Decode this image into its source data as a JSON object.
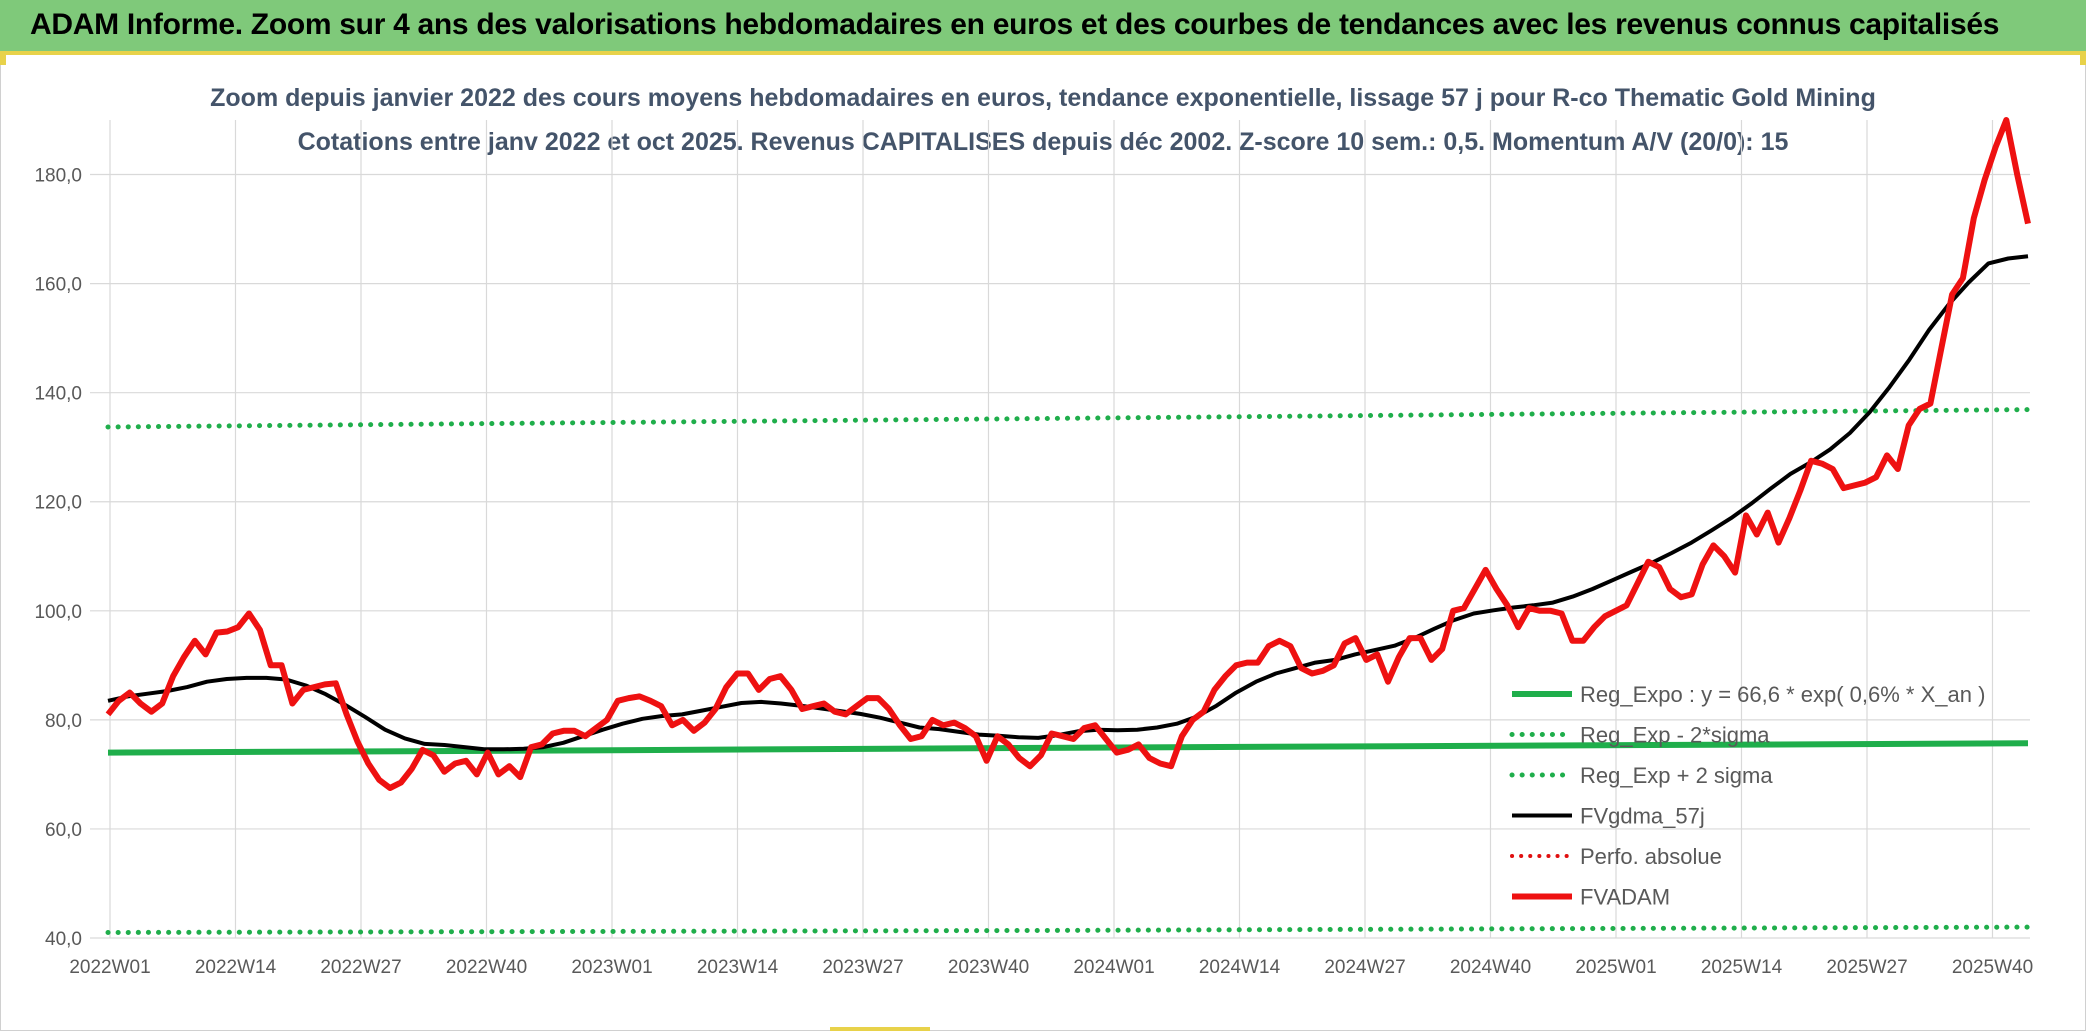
{
  "banner": {
    "title": "ADAM Informe. Zoom sur 4 ans des valorisations hebdomadaires en euros et des courbes de tendances avec les revenus connus capitalisés"
  },
  "chart_data": {
    "type": "line",
    "title": "Zoom depuis janvier 2022 des cours moyens hebdomadaires en euros, tendance exponentielle, lissage 57 j pour R-co Thematic Gold Mining",
    "subtitle": "Cotations entre janv 2022 et oct 2025. Revenus CAPITALISES depuis déc 2002. Z-score 10 sem.: 0,5. Momentum A/V (20/0): 15",
    "ylim": [
      40,
      190
    ],
    "yticks": [
      40,
      60,
      80,
      100,
      120,
      140,
      160,
      180
    ],
    "ytick_labels": [
      "40,0",
      "60,0",
      "80,0",
      "100,0",
      "120,0",
      "140,0",
      "160,0",
      "180,0"
    ],
    "xtick_labels": [
      "2022W01",
      "2022W14",
      "2022W27",
      "2022W40",
      "2023W01",
      "2023W14",
      "2023W27",
      "2023W40",
      "2024W01",
      "2024W14",
      "2024W27",
      "2024W40",
      "2025W01",
      "2025W14",
      "2025W27",
      "2025W40"
    ],
    "grid": true,
    "legend_position": "bottom-right",
    "colors": {
      "reg_expo": "#1fae4b",
      "reg_band": "#1fae4b",
      "fvgdma": "#000000",
      "perfo": "#e01010",
      "fvadam": "#ee1111"
    },
    "series": [
      {
        "name": "Reg_Expo : y = 66,6 * exp( 0,6% *  X_an )",
        "style": "solid-thick-green",
        "values": [
          74.0,
          74.4,
          74.9,
          75.3,
          75.7
        ]
      },
      {
        "name": "Reg_Exp - 2*sigma",
        "style": "dotted-green",
        "values": [
          41.0,
          41.2,
          41.4,
          41.7,
          42.0
        ]
      },
      {
        "name": "Reg_Exp + 2 sigma",
        "style": "dotted-green",
        "values": [
          133.7,
          134.5,
          135.3,
          136.1,
          136.9
        ]
      },
      {
        "name": "FVgdma_57j",
        "style": "solid-black",
        "values": [
          83.5,
          84.3,
          84.8,
          85.3,
          86.0,
          87.0,
          87.5,
          87.7,
          87.7,
          87.4,
          86.3,
          84.7,
          82.7,
          80.5,
          78.2,
          76.6,
          75.6,
          75.4,
          75.0,
          74.6,
          74.6,
          74.7,
          75.0,
          75.8,
          77.0,
          78.2,
          79.3,
          80.2,
          80.7,
          81.0,
          81.7,
          82.4,
          83.1,
          83.3,
          83.0,
          82.6,
          82.1,
          81.6,
          81.1,
          80.4,
          79.5,
          78.6,
          78.3,
          77.8,
          77.3,
          77.1,
          76.8,
          76.7,
          77.2,
          77.9,
          78.2,
          78.1,
          78.2,
          78.6,
          79.3,
          80.6,
          82.6,
          85.0,
          87.0,
          88.5,
          89.5,
          90.5,
          91.0,
          92.0,
          92.8,
          93.6,
          95.0,
          96.7,
          98.3,
          99.5,
          100.1,
          100.6,
          101.0,
          101.5,
          102.6,
          104.0,
          105.6,
          107.2,
          108.8,
          110.6,
          112.5,
          114.7,
          117.0,
          119.6,
          122.4,
          125.1,
          127.2,
          129.6,
          132.6,
          136.4,
          141.0,
          146.0,
          151.5,
          156.2,
          160.2,
          163.7,
          164.6,
          165.0
        ]
      },
      {
        "name": "Perfo. absolue",
        "style": "dotted-red",
        "values": []
      },
      {
        "name": "FVADAM",
        "style": "solid-thick-red",
        "values": [
          81.0,
          83.5,
          85.0,
          83.0,
          81.5,
          83.0,
          88.0,
          91.5,
          94.5,
          92.0,
          96.0,
          96.2,
          97.0,
          99.5,
          96.5,
          90.0,
          90.0,
          83.0,
          85.5,
          86.0,
          86.5,
          86.7,
          81.0,
          76.0,
          72.0,
          69.0,
          67.5,
          68.5,
          71.0,
          74.5,
          73.5,
          70.5,
          72.0,
          72.5,
          70.0,
          74.0,
          70.0,
          71.5,
          69.5,
          75.0,
          75.5,
          77.5,
          78.0,
          78.0,
          77.0,
          78.5,
          80.0,
          83.5,
          84.0,
          84.3,
          83.5,
          82.5,
          79.0,
          80.0,
          78.0,
          79.5,
          82.0,
          86.0,
          88.5,
          88.5,
          85.5,
          87.5,
          88.0,
          85.5,
          82.0,
          82.5,
          83.0,
          81.5,
          81.0,
          82.5,
          84.0,
          84.0,
          82.0,
          79.0,
          76.5,
          77.0,
          80.0,
          79.0,
          79.5,
          78.5,
          77.0,
          72.5,
          77.0,
          75.5,
          73.0,
          71.5,
          73.5,
          77.5,
          77.0,
          76.5,
          78.5,
          79.0,
          76.5,
          74.0,
          74.5,
          75.5,
          73.0,
          72.0,
          71.5,
          77.0,
          80.0,
          81.5,
          85.5,
          88.0,
          90.0,
          90.5,
          90.5,
          93.5,
          94.5,
          93.5,
          89.5,
          88.5,
          89.0,
          90.0,
          94.0,
          95.0,
          91.0,
          92.0,
          87.0,
          91.5,
          95.0,
          95.0,
          91.0,
          93.0,
          100.0,
          100.5,
          104.0,
          107.5,
          104.0,
          101.0,
          97.0,
          100.5,
          100.0,
          100.0,
          99.5,
          94.5,
          94.5,
          97.0,
          99.0,
          100.0,
          101.0,
          105.0,
          109.0,
          108.0,
          104.0,
          102.5,
          103.0,
          108.5,
          112.0,
          110.0,
          107.0,
          117.5,
          114.0,
          118.0,
          112.5,
          117.0,
          122.0,
          127.5,
          127.0,
          126.0,
          122.5,
          123.0,
          123.5,
          124.5,
          128.5,
          126.0,
          134.0,
          137.0,
          138.0,
          148.0,
          158.0,
          161.0,
          172.0,
          179.0,
          185.0,
          190.0,
          180.0,
          171.0
        ]
      }
    ]
  }
}
